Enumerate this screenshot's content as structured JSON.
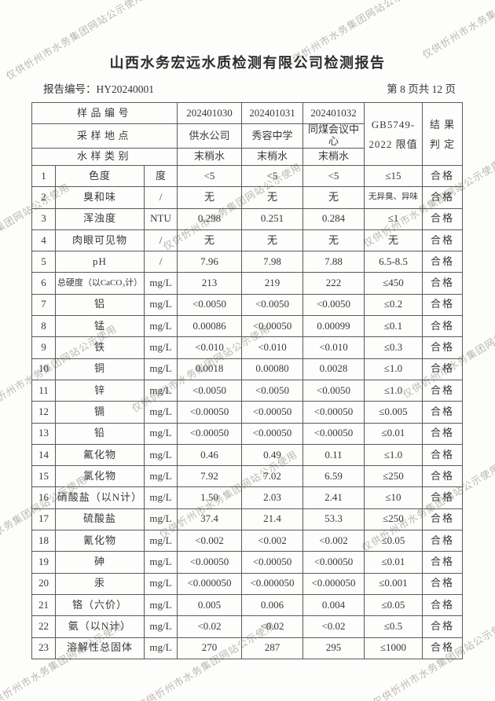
{
  "watermark": "仅供忻州市水务集团网站公示使用",
  "title": "山西水务宏远水质检测有限公司检测报告",
  "report": {
    "label": "报告编号：",
    "number": "HY20240001",
    "page_info": "第 8 页共 12 页"
  },
  "table": {
    "header": {
      "sample_id_label": "样品编号",
      "sample_ids": [
        "202401030",
        "202401031",
        "202401032"
      ],
      "location_label": "采样地点",
      "locations": [
        "供水公司",
        "秀容中学",
        "同煤会议中心"
      ],
      "category_label": "水样类别",
      "categories": [
        "末梢水",
        "末梢水",
        "末梢水"
      ],
      "limit_line1": "GB5749-",
      "limit_line2": "2022 限值",
      "result_line1": "结 果",
      "result_line2": "判 定"
    },
    "rows": [
      {
        "no": "1",
        "param": "色度",
        "unit": "度",
        "values": [
          "<5",
          "<5",
          "<5"
        ],
        "limit": "≤15",
        "result": "合格"
      },
      {
        "no": "2",
        "param": "臭和味",
        "unit": "/",
        "values": [
          "无",
          "无",
          "无"
        ],
        "limit": "无异臭、异味",
        "result": "合格"
      },
      {
        "no": "3",
        "param": "浑浊度",
        "unit": "NTU",
        "values": [
          "0.298",
          "0.251",
          "0.284"
        ],
        "limit": "≤1",
        "result": "合格"
      },
      {
        "no": "4",
        "param": "肉眼可见物",
        "unit": "/",
        "values": [
          "无",
          "无",
          "无"
        ],
        "limit": "无",
        "result": "合格"
      },
      {
        "no": "5",
        "param": "pH",
        "unit": "/",
        "values": [
          "7.96",
          "7.98",
          "7.88"
        ],
        "limit": "6.5-8.5",
        "result": "合格"
      },
      {
        "no": "6",
        "param": "总硬度（以CaCO₃计）",
        "unit": "mg/L",
        "values": [
          "213",
          "219",
          "222"
        ],
        "limit": "≤450",
        "result": "合格"
      },
      {
        "no": "7",
        "param": "铝",
        "unit": "mg/L",
        "values": [
          "<0.0050",
          "<0.0050",
          "<0.0050"
        ],
        "limit": "≤0.2",
        "result": "合格"
      },
      {
        "no": "8",
        "param": "锰",
        "unit": "mg/L",
        "values": [
          "0.00086",
          "<0.00050",
          "0.00099"
        ],
        "limit": "≤0.1",
        "result": "合格"
      },
      {
        "no": "9",
        "param": "铁",
        "unit": "mg/L",
        "values": [
          "<0.010",
          "<0.010",
          "<0.010"
        ],
        "limit": "≤0.3",
        "result": "合格"
      },
      {
        "no": "10",
        "param": "铜",
        "unit": "mg/L",
        "values": [
          "0.0018",
          "0.00080",
          "0.0028"
        ],
        "limit": "≤1.0",
        "result": "合格"
      },
      {
        "no": "11",
        "param": "锌",
        "unit": "mg/L",
        "values": [
          "<0.0050",
          "<0.0050",
          "<0.0050"
        ],
        "limit": "≤1.0",
        "result": "合格"
      },
      {
        "no": "12",
        "param": "镉",
        "unit": "mg/L",
        "values": [
          "<0.00050",
          "<0.00050",
          "<0.00050"
        ],
        "limit": "≤0.005",
        "result": "合格"
      },
      {
        "no": "13",
        "param": "铅",
        "unit": "mg/L",
        "values": [
          "<0.00050",
          "<0.00050",
          "<0.00050"
        ],
        "limit": "≤0.01",
        "result": "合格"
      },
      {
        "no": "14",
        "param": "氟化物",
        "unit": "mg/L",
        "values": [
          "0.46",
          "0.49",
          "0.11"
        ],
        "limit": "≤1.0",
        "result": "合格"
      },
      {
        "no": "15",
        "param": "氯化物",
        "unit": "mg/L",
        "values": [
          "7.92",
          "7.02",
          "6.59"
        ],
        "limit": "≤250",
        "result": "合格"
      },
      {
        "no": "16",
        "param": "硝酸盐（以N计）",
        "unit": "mg/L",
        "values": [
          "1.50",
          "2.03",
          "2.41"
        ],
        "limit": "≤10",
        "result": "合格"
      },
      {
        "no": "17",
        "param": "硫酸盐",
        "unit": "mg/L",
        "values": [
          "37.4",
          "21.4",
          "53.3"
        ],
        "limit": "≤250",
        "result": "合格"
      },
      {
        "no": "18",
        "param": "氰化物",
        "unit": "mg/L",
        "values": [
          "<0.002",
          "<0.002",
          "<0.002"
        ],
        "limit": "≤0.05",
        "result": "合格"
      },
      {
        "no": "19",
        "param": "砷",
        "unit": "mg/L",
        "values": [
          "<0.00050",
          "<0.00050",
          "<0.00050"
        ],
        "limit": "≤0.01",
        "result": "合格"
      },
      {
        "no": "20",
        "param": "汞",
        "unit": "mg/L",
        "values": [
          "<0.000050",
          "<0.000050",
          "<0.000050"
        ],
        "limit": "≤0.001",
        "result": "合格"
      },
      {
        "no": "21",
        "param": "铬（六价）",
        "unit": "mg/L",
        "values": [
          "0.005",
          "0.006",
          "0.004"
        ],
        "limit": "≤0.05",
        "result": "合格"
      },
      {
        "no": "22",
        "param": "氨（以N计）",
        "unit": "mg/L",
        "values": [
          "<0.02",
          "<0.02",
          "<0.02"
        ],
        "limit": "≤0.5",
        "result": "合格"
      },
      {
        "no": "23",
        "param": "溶解性总固体",
        "unit": "mg/L",
        "values": [
          "270",
          "287",
          "295"
        ],
        "limit": "≤1000",
        "result": "合格"
      }
    ]
  }
}
